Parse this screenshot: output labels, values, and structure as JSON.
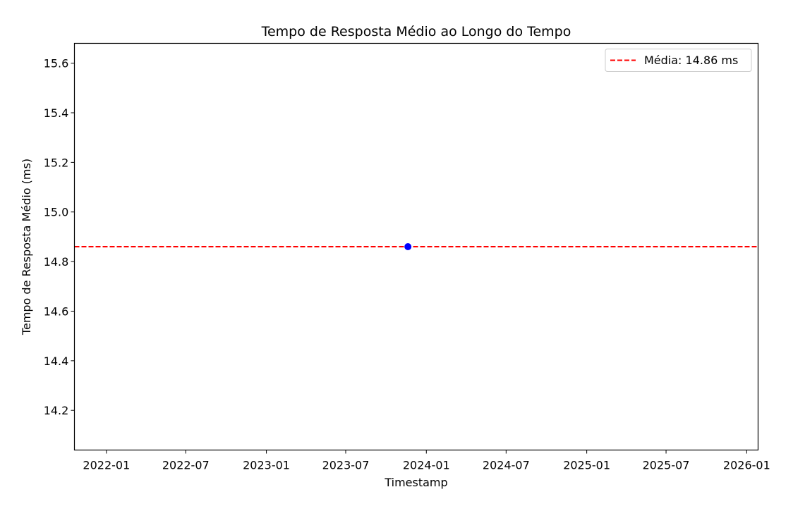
{
  "chart_data": {
    "type": "scatter",
    "title": "Tempo de Resposta Médio ao Longo do Tempo",
    "xlabel": "Timestamp",
    "ylabel": "Tempo de Resposta Médio (ms)",
    "x_type": "date",
    "xlim": [
      "2021-10-20",
      "2026-01-27"
    ],
    "ylim": [
      14.04,
      15.68
    ],
    "x_ticks": [
      "2022-01",
      "2022-07",
      "2023-01",
      "2023-07",
      "2024-01",
      "2024-07",
      "2025-01",
      "2025-07",
      "2026-01"
    ],
    "y_ticks": [
      14.2,
      14.4,
      14.6,
      14.8,
      15.0,
      15.2,
      15.4,
      15.6
    ],
    "y_tick_labels": [
      "14.2",
      "14.4",
      "14.6",
      "14.8",
      "15.0",
      "15.2",
      "15.4",
      "15.6"
    ],
    "series": [
      {
        "color": "#0000ff",
        "points": [
          {
            "x": "2023-11-20",
            "y": 14.86
          }
        ]
      }
    ],
    "reference_lines": [
      {
        "orientation": "horizontal",
        "y": 14.86,
        "color": "#ff0000",
        "style": "dashed",
        "label": "Média: 14.86 ms"
      }
    ],
    "legend": {
      "position": "top-right",
      "entries": [
        "Média: 14.86 ms"
      ]
    },
    "grid": false
  }
}
